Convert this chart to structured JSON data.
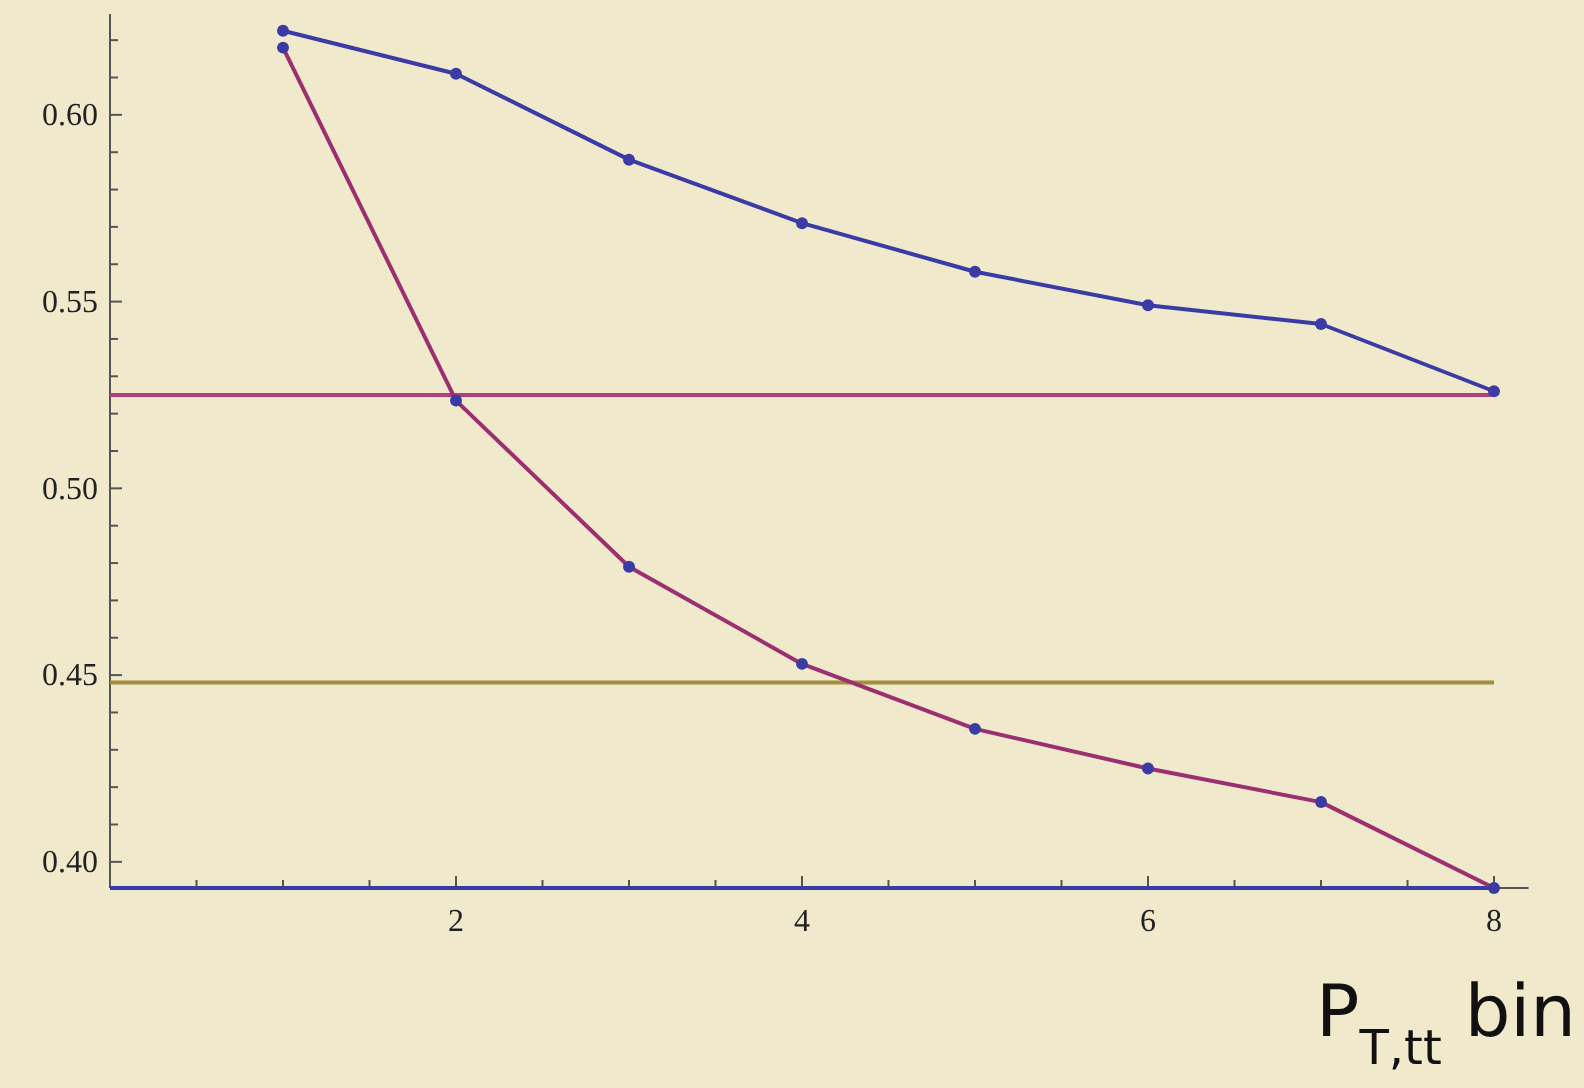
{
  "chart_data": {
    "type": "line",
    "xlabel": "P$_{T,tt}$ bin",
    "x": [
      1,
      2,
      3,
      4,
      5,
      6,
      7,
      8
    ],
    "xlim": [
      0,
      8.2
    ],
    "ylim": [
      0.393,
      0.627
    ],
    "xticks": [
      {
        "value": 0.5,
        "label": null
      },
      {
        "value": 1,
        "label": null
      },
      {
        "value": 1.5,
        "label": null
      },
      2,
      {
        "value": 2.5,
        "label": null
      },
      {
        "value": 3,
        "label": null
      },
      {
        "value": 3.5,
        "label": null
      },
      4,
      {
        "value": 4.5,
        "label": null
      },
      {
        "value": 5,
        "label": null
      },
      {
        "value": 5.5,
        "label": null
      },
      6,
      {
        "value": 6.5,
        "label": null
      },
      {
        "value": 7,
        "label": null
      },
      {
        "value": 7.5,
        "label": null
      },
      8
    ],
    "yticks": [
      {
        "value": 0.4,
        "label": "0.40"
      },
      {
        "value": 0.41,
        "label": null
      },
      {
        "value": 0.42,
        "label": null
      },
      {
        "value": 0.43,
        "label": null
      },
      {
        "value": 0.44,
        "label": null
      },
      {
        "value": 0.45,
        "label": "0.45"
      },
      {
        "value": 0.46,
        "label": null
      },
      {
        "value": 0.47,
        "label": null
      },
      {
        "value": 0.48,
        "label": null
      },
      {
        "value": 0.49,
        "label": null
      },
      {
        "value": 0.5,
        "label": "0.50"
      },
      {
        "value": 0.51,
        "label": null
      },
      {
        "value": 0.52,
        "label": null
      },
      {
        "value": 0.53,
        "label": null
      },
      {
        "value": 0.54,
        "label": null
      },
      {
        "value": 0.55,
        "label": "0.55"
      },
      {
        "value": 0.56,
        "label": null
      },
      {
        "value": 0.57,
        "label": null
      },
      {
        "value": 0.58,
        "label": null
      },
      {
        "value": 0.59,
        "label": null
      },
      {
        "value": 0.6,
        "label": "0.60"
      },
      {
        "value": 0.61,
        "label": null
      },
      {
        "value": 0.62,
        "label": null
      }
    ],
    "marker": "circle",
    "grid": false,
    "series": [
      {
        "color": "#3b3ba6",
        "values": [
          0.6225,
          0.611,
          0.588,
          0.571,
          0.558,
          0.549,
          0.544,
          0.526
        ]
      },
      {
        "color": "#9b2f6f",
        "values": [
          0.618,
          0.5235,
          0.479,
          0.453,
          0.4356,
          0.425,
          0.416,
          0.393
        ]
      }
    ],
    "ref_lines": [
      {
        "axis": "y",
        "value": 0.525,
        "color": "#b0407c"
      },
      {
        "axis": "y",
        "value": 0.448,
        "color": "#a38e3c"
      },
      {
        "axis": "y",
        "value": 0.393,
        "color": "#3b3ba6"
      }
    ]
  }
}
